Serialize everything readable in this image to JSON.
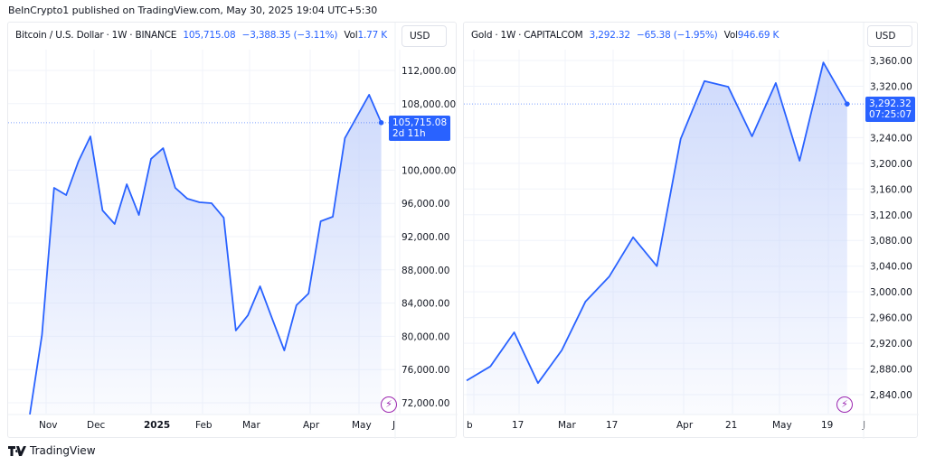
{
  "header": {
    "published": "BeInCrypto1 published on TradingView.com, May 30, 2025 19:04 UTC+5:30"
  },
  "footer": {
    "brand": "TradingView"
  },
  "colors": {
    "line": "#2962ff",
    "tag_bg": "#2962ff",
    "fill_top": "#c5d3fb",
    "grid": "#f0f3fa",
    "event_icon": "#9c27b0"
  },
  "panels": [
    {
      "symbol": "Bitcoin / U.S. Dollar",
      "interval": "1W",
      "exchange": "BINANCE",
      "price": "105,715.08",
      "change": "−3,388.35 (−3.11%)",
      "vol_label": "Vol",
      "vol_value": "1.77 K",
      "currency": "USD",
      "last_price_tag": "105,715.08",
      "countdown": "2d 11h"
    },
    {
      "symbol": "Gold",
      "interval": "1W",
      "exchange": "CAPITALCOM",
      "price": "3,292.32",
      "change": "−65.38 (−1.95%)",
      "vol_label": "Vol",
      "vol_value": "946.69 K",
      "currency": "USD",
      "last_price_tag": "3,292.32",
      "countdown": "07:25:07"
    }
  ],
  "chart_data": [
    {
      "type": "area",
      "title": "Bitcoin / U.S. Dollar · 1W · BINANCE",
      "xlabel": "",
      "ylabel": "USD",
      "x_tick_labels": [
        "Nov",
        "Dec",
        "2025",
        "Feb",
        "Mar",
        "Apr",
        "May",
        "J"
      ],
      "y_tick_labels": [
        "112,000.00",
        "108,000.00",
        "100,000.00",
        "96,000.00",
        "92,000.00",
        "88,000.00",
        "84,000.00",
        "80,000.00",
        "76,000.00",
        "72,000.00"
      ],
      "ylim": [
        70000,
        114000
      ],
      "grid": true,
      "last_value": 105715.08,
      "values": [
        70600,
        80150,
        97870,
        97000,
        101020,
        104060,
        95150,
        93520,
        98300,
        94600,
        101350,
        102650,
        97870,
        96560,
        96130,
        96020,
        94280,
        80700,
        82540,
        86020,
        82110,
        78300,
        83740,
        85150,
        93850,
        94390,
        103850,
        106460,
        109070,
        105715.08
      ]
    },
    {
      "type": "area",
      "title": "Gold · 1W · CAPITALCOM",
      "xlabel": "",
      "ylabel": "USD",
      "x_tick_labels": [
        "b",
        "17",
        "Mar",
        "17",
        "Apr",
        "21",
        "May",
        "19",
        "J"
      ],
      "y_tick_labels": [
        "3,360.00",
        "3,320.00",
        "3,240.00",
        "3,200.00",
        "3,160.00",
        "3,120.00",
        "3,080.00",
        "3,040.00",
        "3,000.00",
        "2,960.00",
        "2,920.00",
        "2,880.00",
        "2,840.00"
      ],
      "ylim": [
        2810,
        3380
      ],
      "grid": true,
      "last_value": 3292.32,
      "values": [
        2862,
        2884,
        2937,
        2858,
        2909,
        2985,
        3024,
        3085,
        3040,
        3238,
        3328,
        3319,
        3242,
        3325,
        3204,
        3357,
        3292.32
      ]
    }
  ]
}
